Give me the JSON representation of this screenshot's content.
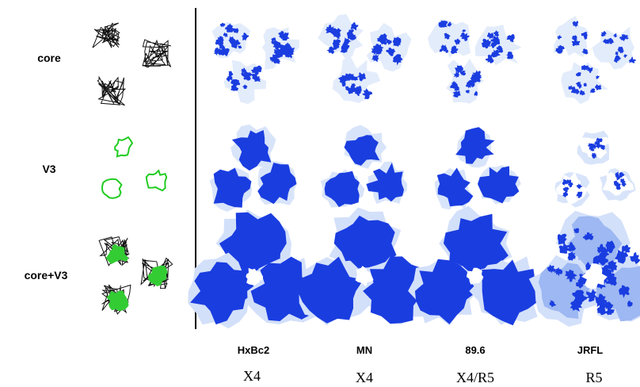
{
  "rows": [
    {
      "label": "core"
    },
    {
      "label": "V3"
    },
    {
      "label": "core+V3"
    }
  ],
  "columns": [
    {
      "name": "HxBc2",
      "tropism": "X4"
    },
    {
      "name": "MN",
      "tropism": "X4"
    },
    {
      "name": "89.6",
      "tropism": "X4/R5"
    },
    {
      "name": "JRFL",
      "tropism": "R5"
    }
  ]
}
